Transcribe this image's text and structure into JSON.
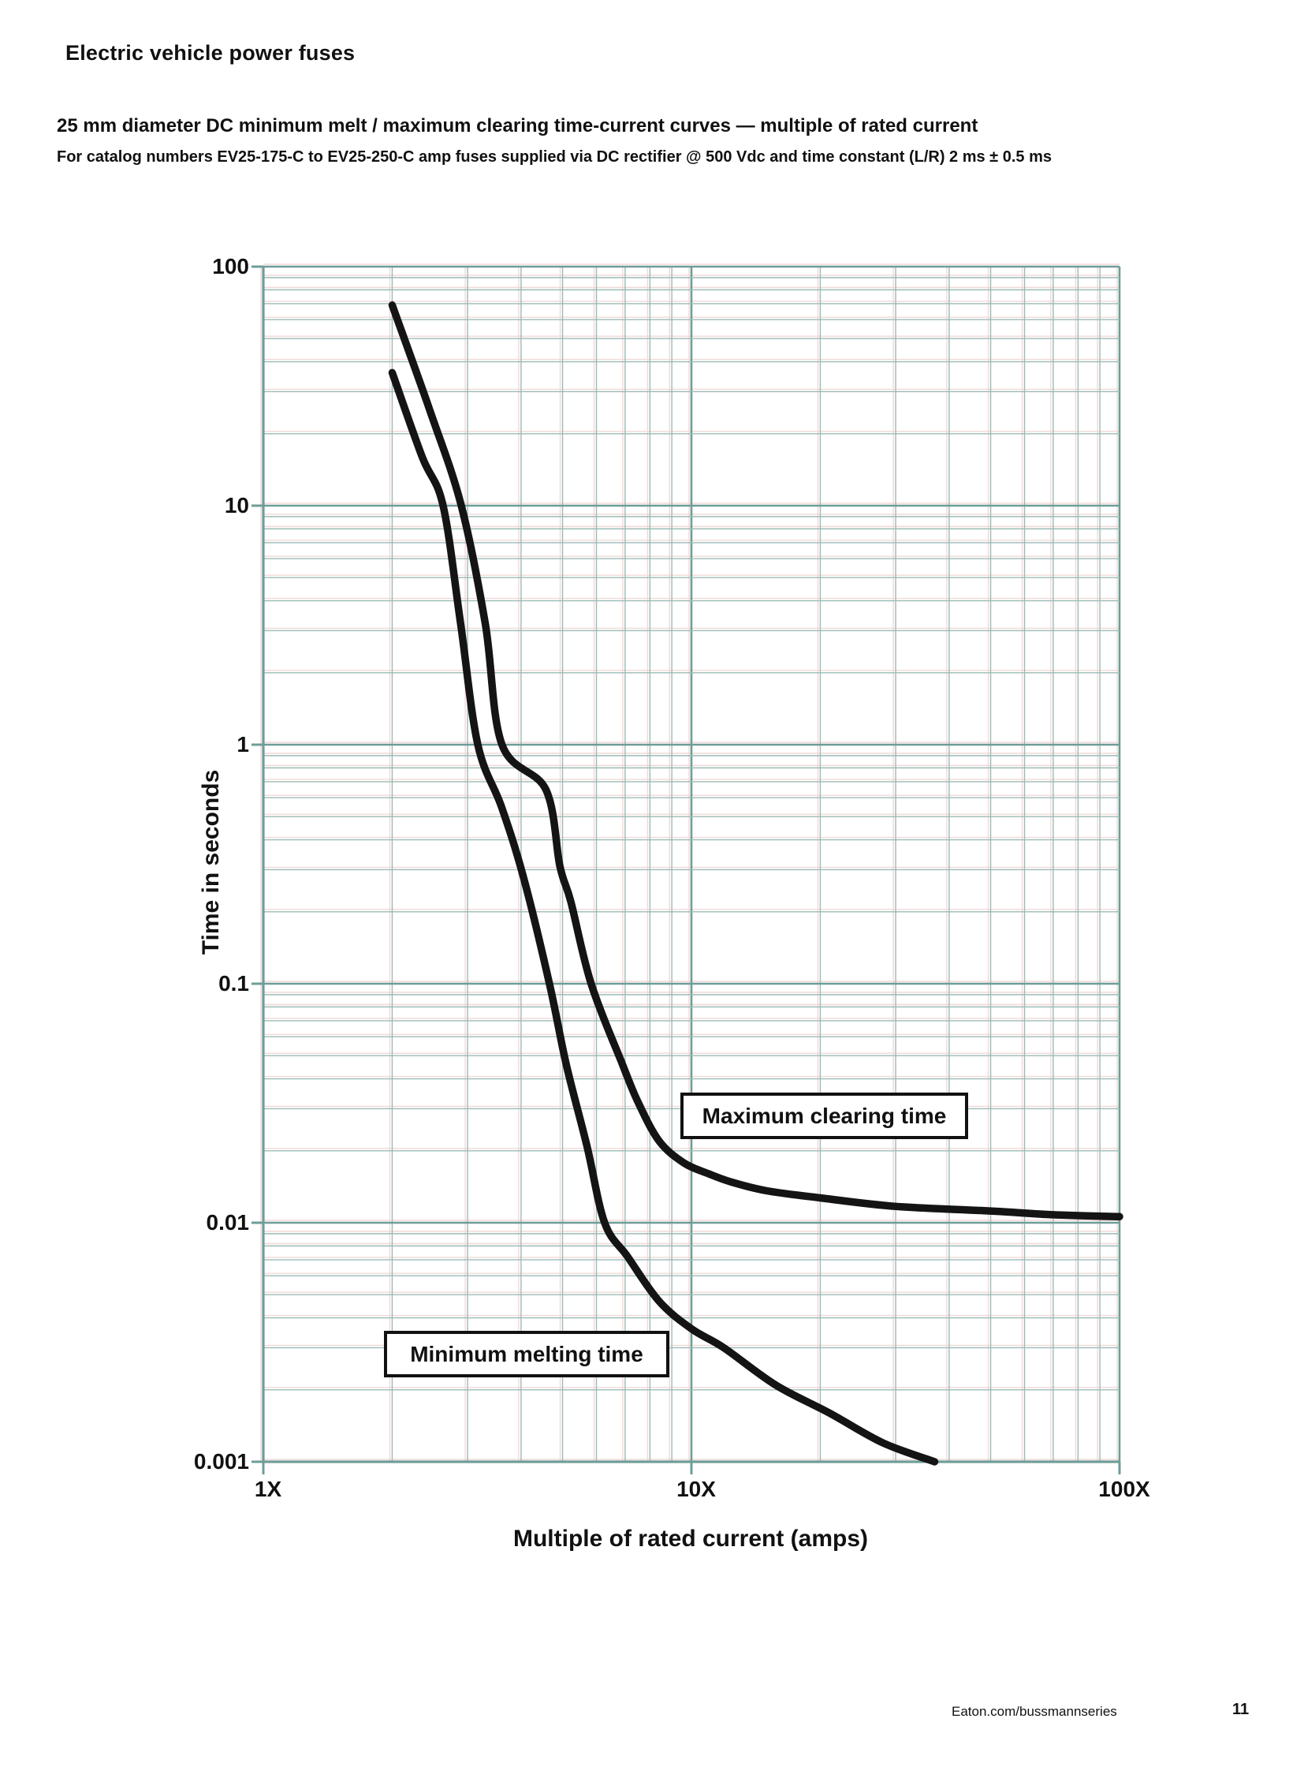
{
  "page": {
    "header": "Electric vehicle power fuses",
    "footer": {
      "url": "Eaton.com/bussmannseries",
      "page_number": "11"
    }
  },
  "chart_data": {
    "type": "line",
    "title": "25 mm diameter DC minimum melt / maximum clearing time-current curves — multiple of rated current",
    "subtitle": "For catalog numbers EV25-175-C to EV25-250-C amp fuses supplied via DC rectifier @ 500 Vdc and time constant (L/R) 2 ms ± 0.5 ms",
    "xlabel": "Multiple of rated current (amps)",
    "ylabel": "Time in seconds",
    "x_scale": "log",
    "y_scale": "log",
    "x_range": [
      1,
      100
    ],
    "y_range": [
      0.001,
      100
    ],
    "grid": "log major + minor, full frame",
    "legend_position": "inline label boxes",
    "x_ticks": [
      {
        "label": "1X",
        "value": 1
      },
      {
        "label": "10X",
        "value": 10
      },
      {
        "label": "100X",
        "value": 100
      }
    ],
    "y_ticks": [
      {
        "label": "100",
        "value": 100
      },
      {
        "label": "10",
        "value": 10
      },
      {
        "label": "1",
        "value": 1
      },
      {
        "label": "0.1",
        "value": 0.1
      },
      {
        "label": "0.01",
        "value": 0.01
      },
      {
        "label": "0.001",
        "value": 0.001
      }
    ],
    "series": [
      {
        "name": "Maximum clearing time",
        "points": [
          [
            2.0,
            69
          ],
          [
            2.45,
            25
          ],
          [
            2.9,
            10
          ],
          [
            3.3,
            3.2
          ],
          [
            3.61,
            1.0
          ],
          [
            4.57,
            0.65
          ],
          [
            4.93,
            0.31
          ],
          [
            5.23,
            0.22
          ],
          [
            5.83,
            0.1
          ],
          [
            6.9,
            0.046
          ],
          [
            7.5,
            0.032
          ],
          [
            8.4,
            0.022
          ],
          [
            9.6,
            0.0178
          ],
          [
            11,
            0.016
          ],
          [
            12.4,
            0.0148
          ],
          [
            15,
            0.0136
          ],
          [
            20,
            0.0127
          ],
          [
            30,
            0.0117
          ],
          [
            50,
            0.0112
          ],
          [
            70,
            0.0108
          ],
          [
            100,
            0.0106
          ]
        ]
      },
      {
        "name": "Minimum melting time",
        "points": [
          [
            2.0,
            36
          ],
          [
            2.35,
            16
          ],
          [
            2.63,
            10
          ],
          [
            2.89,
            3.2
          ],
          [
            3.17,
            1.0
          ],
          [
            3.6,
            0.55
          ],
          [
            4.05,
            0.28
          ],
          [
            4.66,
            0.1
          ],
          [
            5.1,
            0.046
          ],
          [
            5.7,
            0.021
          ],
          [
            6.27,
            0.01
          ],
          [
            7.1,
            0.0072
          ],
          [
            8.4,
            0.0047
          ],
          [
            10,
            0.0036
          ],
          [
            11.9,
            0.003
          ],
          [
            15.7,
            0.0021
          ],
          [
            21,
            0.0016
          ],
          [
            28,
            0.0012
          ],
          [
            37,
            0.001
          ]
        ]
      }
    ],
    "colors": {
      "curve": "#141414",
      "grid_minor": "#9bbbb6",
      "grid_major": "#6e9d98",
      "grid_fringe": "#f0d9d7",
      "label_box_border": "#111111",
      "label_box_bg": "#ffffff"
    }
  }
}
